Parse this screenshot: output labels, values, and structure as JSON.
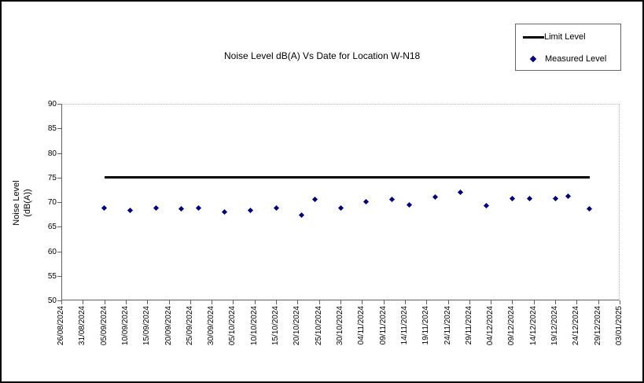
{
  "chart_data": {
    "type": "scatter",
    "title": "Noise Level dB(A) Vs Date for Location W-N18",
    "xlabel": "",
    "ylabel": "Noise Level (dB(A))",
    "ylabel_lines": [
      "Noise Level",
      "(dB(A))"
    ],
    "ylim": [
      50,
      90
    ],
    "yticks": [
      90,
      85,
      80,
      75,
      70,
      65,
      60,
      55,
      50
    ],
    "grid": false,
    "legend_position": "top-right",
    "x_range": {
      "start": "26/08/2024",
      "end": "03/01/2025",
      "tick_interval_days": 5
    },
    "x_tick_labels": [
      "26/08/2024",
      "31/08/2024",
      "05/09/2024",
      "10/09/2024",
      "15/09/2024",
      "20/09/2024",
      "25/09/2024",
      "30/09/2024",
      "05/10/2024",
      "10/10/2024",
      "15/10/2024",
      "20/10/2024",
      "25/10/2024",
      "30/10/2024",
      "04/11/2024",
      "09/11/2024",
      "14/11/2024",
      "19/11/2024",
      "24/11/2024",
      "29/11/2024",
      "04/12/2024",
      "09/12/2024",
      "14/12/2024",
      "19/12/2024",
      "24/12/2024",
      "29/12/2024",
      "03/01/2025"
    ],
    "series": [
      {
        "name": "Limit Level",
        "type": "line",
        "color": "#000000",
        "value": 75,
        "x_start": "05/09/2024",
        "x_end": "27/12/2024"
      },
      {
        "name": "Measured Level",
        "type": "scatter",
        "marker": "diamond",
        "color": "#000080",
        "points": [
          {
            "date": "05/09/2024",
            "value": 68.8
          },
          {
            "date": "11/09/2024",
            "value": 68.3
          },
          {
            "date": "17/09/2024",
            "value": 68.8
          },
          {
            "date": "23/09/2024",
            "value": 68.7
          },
          {
            "date": "27/09/2024",
            "value": 68.8
          },
          {
            "date": "03/10/2024",
            "value": 68.0
          },
          {
            "date": "09/10/2024",
            "value": 68.4
          },
          {
            "date": "15/10/2024",
            "value": 68.8
          },
          {
            "date": "21/10/2024",
            "value": 67.4
          },
          {
            "date": "24/10/2024",
            "value": 70.6
          },
          {
            "date": "30/10/2024",
            "value": 68.8
          },
          {
            "date": "05/11/2024",
            "value": 70.1
          },
          {
            "date": "11/11/2024",
            "value": 70.5
          },
          {
            "date": "15/11/2024",
            "value": 69.5
          },
          {
            "date": "21/11/2024",
            "value": 71.0
          },
          {
            "date": "27/11/2024",
            "value": 72.0
          },
          {
            "date": "03/12/2024",
            "value": 69.3
          },
          {
            "date": "09/12/2024",
            "value": 70.7
          },
          {
            "date": "13/12/2024",
            "value": 70.8
          },
          {
            "date": "19/12/2024",
            "value": 70.7
          },
          {
            "date": "22/12/2024",
            "value": 71.2
          },
          {
            "date": "27/12/2024",
            "value": 68.7
          }
        ]
      }
    ],
    "colors": {
      "measured_point": "#000080",
      "limit_line": "#000000",
      "axis": "#606060",
      "plot_border": "#b4b4b4",
      "legend_border": "#666666",
      "outer_border": "#000000",
      "text": "#000000"
    }
  }
}
